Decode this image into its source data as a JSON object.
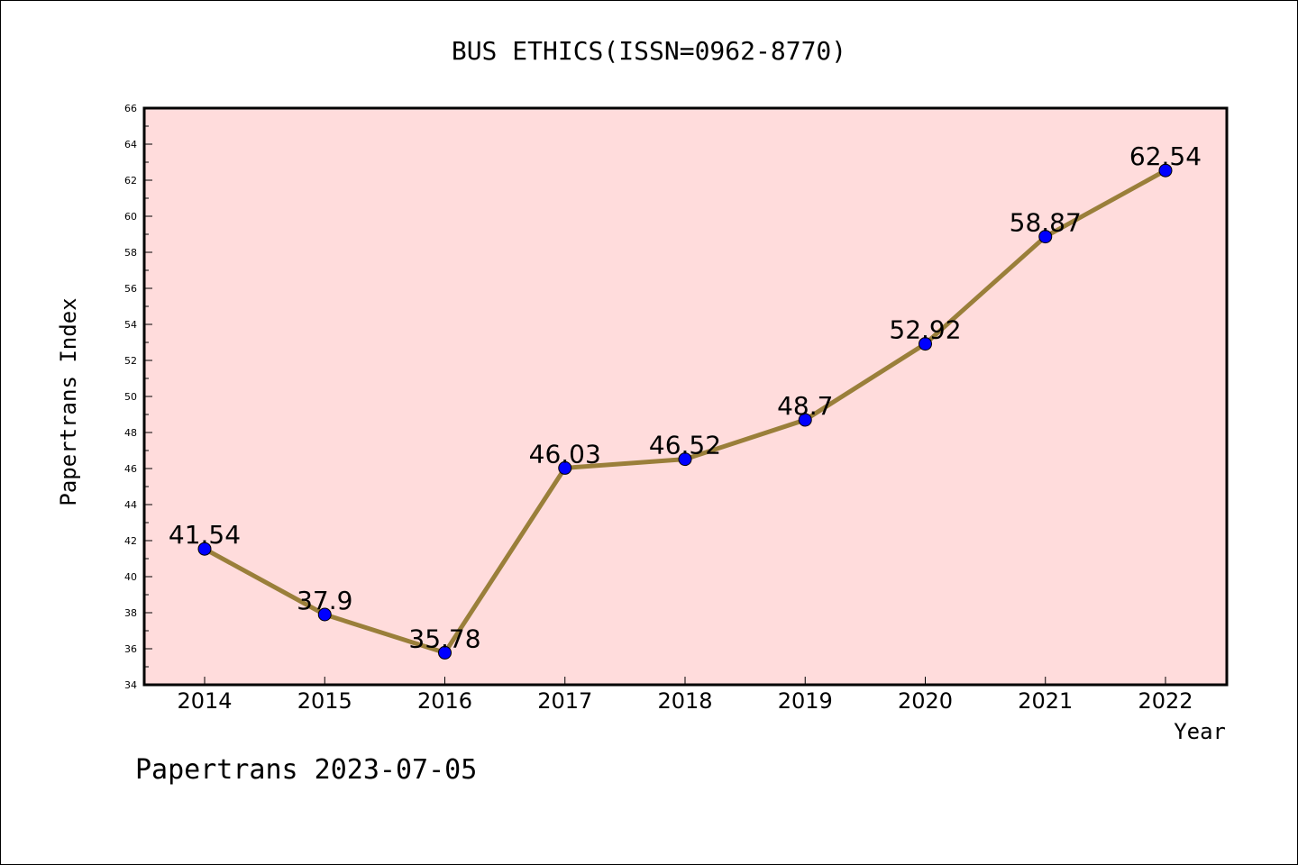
{
  "chart_data": {
    "type": "line",
    "title": "BUS ETHICS(ISSN=0962-8770)",
    "xlabel": "Year",
    "ylabel": "Papertrans Index",
    "footer": "Papertrans 2023-07-05",
    "categories": [
      "2014",
      "2015",
      "2016",
      "2017",
      "2018",
      "2019",
      "2020",
      "2021",
      "2022"
    ],
    "values": [
      41.54,
      37.9,
      35.78,
      46.03,
      46.52,
      48.7,
      52.92,
      58.87,
      62.54
    ],
    "data_labels": [
      "41.54",
      "37.9",
      "35.78",
      "46.03",
      "46.52",
      "48.7",
      "52.92",
      "58.87",
      "62.54"
    ],
    "ylim": [
      34,
      66
    ],
    "yticks": [
      34,
      36,
      38,
      40,
      42,
      44,
      46,
      48,
      50,
      52,
      54,
      56,
      58,
      60,
      62,
      64,
      66
    ],
    "ytick_labels": [
      "34",
      "36",
      "38",
      "40",
      "42",
      "44",
      "46",
      "48",
      "50",
      "52",
      "54",
      "56",
      "58",
      "60",
      "62",
      "64",
      "66"
    ],
    "grid": false,
    "colors": {
      "plot_background": "#ffdcdc",
      "line": "#9a7f3a",
      "marker": "#0000ff"
    }
  }
}
